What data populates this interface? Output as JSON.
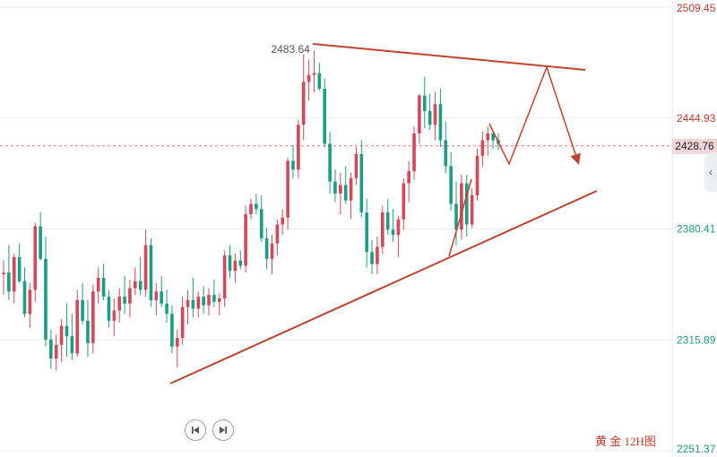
{
  "chart_data": {
    "type": "candlestick",
    "y_axis": {
      "ticks": [
        2509.45,
        2444.93,
        2380.41,
        2315.89,
        2251.37
      ],
      "ylim": [
        2251.37,
        2509.45
      ]
    },
    "current_price": 2428.76,
    "peak_label": 2483.64,
    "caption": "黄 金 12H图",
    "colors": {
      "up": "#d3495a",
      "down": "#1b9e82",
      "trendline": "#c0432e",
      "current_line": "#e07b7b"
    },
    "candles": [
      [
        2354,
        2362,
        2342,
        2355
      ],
      [
        2355,
        2371,
        2339,
        2344
      ],
      [
        2344,
        2366,
        2337,
        2364
      ],
      [
        2364,
        2372,
        2349,
        2350
      ],
      [
        2350,
        2358,
        2329,
        2331
      ],
      [
        2331,
        2349,
        2323,
        2345
      ],
      [
        2345,
        2384,
        2338,
        2382
      ],
      [
        2382,
        2390,
        2362,
        2363
      ],
      [
        2363,
        2376,
        2312,
        2316
      ],
      [
        2316,
        2322,
        2299,
        2305
      ],
      [
        2305,
        2319,
        2298,
        2313
      ],
      [
        2313,
        2328,
        2303,
        2324
      ],
      [
        2324,
        2337,
        2306,
        2318
      ],
      [
        2318,
        2331,
        2304,
        2308
      ],
      [
        2308,
        2345,
        2306,
        2339
      ],
      [
        2339,
        2349,
        2325,
        2327
      ],
      [
        2327,
        2339,
        2306,
        2314
      ],
      [
        2314,
        2348,
        2308,
        2344
      ],
      [
        2344,
        2358,
        2337,
        2352
      ],
      [
        2352,
        2360,
        2339,
        2341
      ],
      [
        2341,
        2345,
        2323,
        2327
      ],
      [
        2327,
        2340,
        2318,
        2333
      ],
      [
        2333,
        2346,
        2326,
        2341
      ],
      [
        2341,
        2353,
        2331,
        2337
      ],
      [
        2337,
        2351,
        2329,
        2346
      ],
      [
        2346,
        2358,
        2342,
        2350
      ],
      [
        2350,
        2364,
        2342,
        2345
      ],
      [
        2345,
        2380,
        2341,
        2371
      ],
      [
        2371,
        2375,
        2335,
        2339
      ],
      [
        2339,
        2349,
        2330,
        2344
      ],
      [
        2344,
        2353,
        2335,
        2337
      ],
      [
        2337,
        2345,
        2326,
        2331
      ],
      [
        2331,
        2336,
        2308,
        2312
      ],
      [
        2312,
        2322,
        2300,
        2317
      ],
      [
        2317,
        2341,
        2313,
        2335
      ],
      [
        2335,
        2345,
        2325,
        2339
      ],
      [
        2339,
        2352,
        2329,
        2334
      ],
      [
        2334,
        2344,
        2329,
        2341
      ],
      [
        2341,
        2347,
        2331,
        2336
      ],
      [
        2336,
        2346,
        2330,
        2342
      ],
      [
        2342,
        2351,
        2335,
        2338
      ],
      [
        2338,
        2343,
        2330,
        2340
      ],
      [
        2340,
        2368,
        2335,
        2365
      ],
      [
        2365,
        2371,
        2352,
        2356
      ],
      [
        2356,
        2366,
        2349,
        2362
      ],
      [
        2362,
        2368,
        2357,
        2359
      ],
      [
        2359,
        2394,
        2355,
        2389
      ],
      [
        2389,
        2398,
        2386,
        2395
      ],
      [
        2395,
        2401,
        2389,
        2392
      ],
      [
        2392,
        2400,
        2373,
        2375
      ],
      [
        2375,
        2381,
        2357,
        2363
      ],
      [
        2363,
        2377,
        2354,
        2372
      ],
      [
        2372,
        2386,
        2365,
        2383
      ],
      [
        2383,
        2392,
        2377,
        2387
      ],
      [
        2387,
        2422,
        2380,
        2420
      ],
      [
        2420,
        2429,
        2410,
        2415
      ],
      [
        2415,
        2444,
        2410,
        2441
      ],
      [
        2441,
        2482,
        2432,
        2466
      ],
      [
        2466,
        2479,
        2455,
        2470
      ],
      [
        2470,
        2484,
        2460,
        2471
      ],
      [
        2471,
        2477,
        2461,
        2462
      ],
      [
        2462,
        2468,
        2428,
        2430
      ],
      [
        2430,
        2437,
        2401,
        2408
      ],
      [
        2408,
        2415,
        2396,
        2401
      ],
      [
        2401,
        2413,
        2389,
        2406
      ],
      [
        2406,
        2417,
        2395,
        2397
      ],
      [
        2397,
        2413,
        2386,
        2410
      ],
      [
        2410,
        2428,
        2406,
        2424
      ],
      [
        2424,
        2432,
        2387,
        2390
      ],
      [
        2390,
        2398,
        2358,
        2367
      ],
      [
        2367,
        2374,
        2354,
        2360
      ],
      [
        2360,
        2376,
        2354,
        2370
      ],
      [
        2370,
        2394,
        2366,
        2390
      ],
      [
        2390,
        2398,
        2377,
        2380
      ],
      [
        2380,
        2392,
        2373,
        2377
      ],
      [
        2377,
        2388,
        2364,
        2386
      ],
      [
        2386,
        2410,
        2380,
        2407
      ],
      [
        2407,
        2420,
        2396,
        2414
      ],
      [
        2414,
        2440,
        2409,
        2436
      ],
      [
        2436,
        2459,
        2430,
        2458
      ],
      [
        2458,
        2469,
        2439,
        2449
      ],
      [
        2449,
        2459,
        2438,
        2441
      ],
      [
        2441,
        2460,
        2432,
        2453
      ],
      [
        2453,
        2462,
        2428,
        2432
      ],
      [
        2432,
        2443,
        2413,
        2417
      ],
      [
        2417,
        2425,
        2391,
        2395
      ],
      [
        2395,
        2408,
        2371,
        2380
      ],
      [
        2380,
        2412,
        2374,
        2407
      ],
      [
        2407,
        2412,
        2376,
        2383
      ],
      [
        2383,
        2404,
        2381,
        2400
      ],
      [
        2400,
        2427,
        2397,
        2423
      ],
      [
        2423,
        2437,
        2417,
        2432
      ],
      [
        2432,
        2440,
        2423,
        2436
      ],
      [
        2436,
        2438,
        2427,
        2432
      ],
      [
        2432,
        2436,
        2426,
        2430
      ]
    ]
  }
}
